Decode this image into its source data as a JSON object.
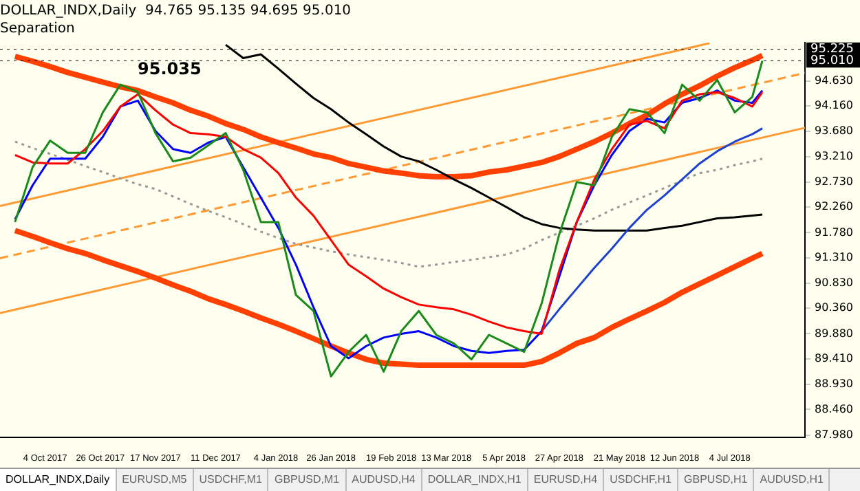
{
  "chart_data": {
    "type": "line",
    "title": "DOLLAR_INDX,Daily  94.765 95.135 94.695 95.010",
    "subtitle": "Separation",
    "x": [
      "2017-09-22",
      "2017-09-29",
      "2017-10-06",
      "2017-10-13",
      "2017-10-20",
      "2017-10-27",
      "2017-11-03",
      "2017-11-10",
      "2017-11-17",
      "2017-11-24",
      "2017-12-01",
      "2017-12-08",
      "2017-12-15",
      "2017-12-22",
      "2017-12-29",
      "2018-01-05",
      "2018-01-12",
      "2018-01-19",
      "2018-01-26",
      "2018-02-02",
      "2018-02-09",
      "2018-02-16",
      "2018-02-23",
      "2018-03-02",
      "2018-03-09",
      "2018-03-16",
      "2018-03-23",
      "2018-03-30",
      "2018-04-06",
      "2018-04-13",
      "2018-04-20",
      "2018-04-27",
      "2018-05-04",
      "2018-05-11",
      "2018-05-18",
      "2018-05-25",
      "2018-06-01",
      "2018-06-08",
      "2018-06-15",
      "2018-06-22",
      "2018-06-29",
      "2018-07-06",
      "2018-07-13",
      "2018-07-17"
    ],
    "series": [
      {
        "color": "#1a8a1a",
        "values": [
          91.98,
          93.01,
          93.51,
          93.28,
          93.28,
          94.04,
          94.56,
          94.42,
          93.65,
          93.12,
          93.19,
          93.42,
          93.65,
          92.96,
          91.98,
          91.98,
          90.61,
          90.31,
          89.08,
          89.54,
          89.86,
          89.17,
          89.93,
          90.31,
          89.86,
          89.7,
          89.4,
          89.86,
          89.7,
          89.54,
          90.45,
          91.75,
          92.73,
          92.67,
          93.58,
          94.1,
          94.04,
          93.65,
          94.56,
          94.26,
          94.65,
          94.04,
          94.33,
          95.01
        ]
      },
      {
        "color": "#ff0000",
        "values": [
          93.24,
          93.1,
          93.08,
          93.08,
          93.35,
          93.69,
          94.15,
          94.38,
          94.08,
          93.81,
          93.65,
          93.63,
          93.58,
          93.35,
          93.19,
          92.9,
          92.44,
          92.1,
          91.64,
          91.18,
          90.96,
          90.73,
          90.57,
          90.43,
          90.38,
          90.34,
          90.24,
          90.11,
          90.0,
          89.93,
          89.88,
          91.07,
          91.98,
          92.78,
          93.35,
          93.81,
          93.88,
          93.74,
          94.26,
          94.38,
          94.42,
          94.31,
          94.15,
          94.42
        ]
      },
      {
        "color": "#0000ff",
        "values": [
          92.03,
          92.67,
          93.17,
          93.17,
          93.17,
          93.58,
          94.15,
          94.26,
          93.69,
          93.35,
          93.28,
          93.47,
          93.58,
          93.01,
          92.44,
          91.87,
          91.18,
          90.38,
          89.65,
          89.42,
          89.65,
          89.81,
          89.88,
          89.93,
          89.81,
          89.65,
          89.56,
          89.52,
          89.56,
          89.58,
          89.93,
          90.95,
          91.98,
          92.67,
          93.24,
          93.69,
          93.92,
          93.85,
          94.22,
          94.31,
          94.45,
          94.26,
          94.22,
          94.45
        ]
      },
      {
        "color": "#1e40d0",
        "values": [
          null,
          null,
          null,
          null,
          null,
          null,
          null,
          null,
          null,
          null,
          null,
          null,
          null,
          null,
          null,
          null,
          null,
          null,
          null,
          null,
          null,
          null,
          null,
          null,
          null,
          null,
          null,
          null,
          null,
          null,
          89.93,
          90.34,
          90.73,
          91.12,
          91.48,
          91.87,
          92.21,
          92.48,
          92.78,
          93.08,
          93.31,
          93.49,
          93.63,
          93.74
        ]
      },
      {
        "color": "#000000",
        "values": [
          null,
          null,
          null,
          null,
          null,
          null,
          null,
          null,
          null,
          null,
          null,
          null,
          95.31,
          95.06,
          95.13,
          94.86,
          94.58,
          94.31,
          94.1,
          93.85,
          93.63,
          93.4,
          93.21,
          93.12,
          92.96,
          92.78,
          92.62,
          92.44,
          92.26,
          92.07,
          91.94,
          91.87,
          91.84,
          91.82,
          91.82,
          91.82,
          91.82,
          91.87,
          91.91,
          91.98,
          92.05,
          92.07,
          92.1,
          92.12
        ]
      },
      {
        "color": "#ff4000",
        "values": [
          95.09,
          95.0,
          94.9,
          94.79,
          94.7,
          94.61,
          94.52,
          94.45,
          94.33,
          94.22,
          94.08,
          93.97,
          93.83,
          93.72,
          93.58,
          93.47,
          93.37,
          93.26,
          93.19,
          93.08,
          93.01,
          92.94,
          92.9,
          92.85,
          92.83,
          92.83,
          92.85,
          92.92,
          92.96,
          93.03,
          93.1,
          93.21,
          93.35,
          93.49,
          93.65,
          93.83,
          93.99,
          94.2,
          94.38,
          94.54,
          94.72,
          94.88,
          95.02,
          95.11
        ]
      },
      {
        "color": "#ff4000",
        "values": [
          91.82,
          91.71,
          91.59,
          91.48,
          91.39,
          91.27,
          91.16,
          91.05,
          90.93,
          90.8,
          90.68,
          90.54,
          90.43,
          90.31,
          90.18,
          90.06,
          89.93,
          89.79,
          89.65,
          89.52,
          89.4,
          89.33,
          89.31,
          89.29,
          89.29,
          89.29,
          89.29,
          89.29,
          89.29,
          89.29,
          89.36,
          89.52,
          89.7,
          89.81,
          90.0,
          90.16,
          90.31,
          90.47,
          90.66,
          90.82,
          90.98,
          91.14,
          91.3,
          91.39
        ]
      },
      {
        "color": "#999999",
        "line_style": "dotted",
        "values": [
          93.49,
          93.37,
          93.26,
          93.15,
          93.03,
          92.92,
          92.8,
          92.69,
          92.6,
          92.46,
          92.32,
          92.19,
          92.07,
          91.94,
          91.8,
          91.68,
          91.57,
          91.5,
          91.43,
          91.37,
          91.32,
          91.27,
          91.21,
          91.14,
          91.18,
          91.23,
          91.27,
          91.32,
          91.37,
          91.48,
          91.64,
          91.78,
          91.91,
          92.05,
          92.21,
          92.35,
          92.48,
          92.62,
          92.76,
          92.9,
          92.96,
          93.05,
          93.12,
          93.17
        ]
      },
      {
        "color": "#ff9933",
        "x": [
          "2017-09-16",
          "2018-08-03"
        ],
        "values": [
          90.27,
          93.75
        ]
      },
      {
        "color": "#ff9933",
        "line_style": "dashed",
        "x": [
          "2017-09-16",
          "2018-08-03"
        ],
        "values": [
          91.3,
          94.78
        ]
      },
      {
        "color": "#ff9933",
        "x": [
          "2017-09-16",
          "2018-06-26"
        ],
        "values": [
          92.28,
          95.34
        ]
      }
    ],
    "xlim": [
      "2017-09-16",
      "2018-08-03"
    ],
    "xticks": [
      {
        "value": "2017-10-04",
        "label": "4 Oct 2017"
      },
      {
        "value": "2017-10-26",
        "label": "26 Oct 2017"
      },
      {
        "value": "2017-11-17",
        "label": "17 Nov 2017"
      },
      {
        "value": "2017-12-11",
        "label": "11 Dec 2017"
      },
      {
        "value": "2018-01-04",
        "label": "4 Jan 2018"
      },
      {
        "value": "2018-01-26",
        "label": "26 Jan 2018"
      },
      {
        "value": "2018-02-19",
        "label": "19 Feb 2018"
      },
      {
        "value": "2018-03-13",
        "label": "13 Mar 2018"
      },
      {
        "value": "2018-04-05",
        "label": "5 Apr 2018"
      },
      {
        "value": "2018-04-27",
        "label": "27 Apr 2018"
      },
      {
        "value": "2018-05-21",
        "label": "21 May 2018"
      },
      {
        "value": "2018-06-12",
        "label": "12 Jun 2018"
      },
      {
        "value": "2018-07-04",
        "label": "4 Jul 2018"
      }
    ],
    "ylim": [
      87.93,
      95.35
    ],
    "yticks": [
      {
        "value": 87.98,
        "label": "87.980"
      },
      {
        "value": 88.46,
        "label": "88.460"
      },
      {
        "value": 88.93,
        "label": "88.930"
      },
      {
        "value": 89.41,
        "label": "89.410"
      },
      {
        "value": 89.88,
        "label": "89.880"
      },
      {
        "value": 90.36,
        "label": "90.360"
      },
      {
        "value": 90.83,
        "label": "90.830"
      },
      {
        "value": 91.31,
        "label": "91.310"
      },
      {
        "value": 91.78,
        "label": "91.780"
      },
      {
        "value": 92.26,
        "label": "92.260"
      },
      {
        "value": 92.73,
        "label": "92.730"
      },
      {
        "value": 93.21,
        "label": "93.210"
      },
      {
        "value": 93.68,
        "label": "93.680"
      },
      {
        "value": 94.16,
        "label": "94.160"
      },
      {
        "value": 94.63,
        "label": "94.630"
      }
    ],
    "ref_lines": [
      {
        "axis": "y",
        "value": 95.225,
        "label": "95.225",
        "color": "#000000"
      },
      {
        "axis": "y",
        "value": 95.01,
        "label": "95.010",
        "color": "#000000"
      }
    ],
    "annotations": [
      "95.035",
      "DOLLAR_INDX,Daily",
      "EURUSD,M5",
      "USDCHF,M1",
      "GBPUSD,M1",
      "AUDUSD,H4",
      "DOLLAR_INDX,H1",
      "EURUSD,H4",
      "USDCHF,H1",
      "GBPUSD,H1",
      "AUDUSD,H1"
    ],
    "grid": false,
    "legend": false,
    "marker": "none",
    "line_style": "solid"
  }
}
